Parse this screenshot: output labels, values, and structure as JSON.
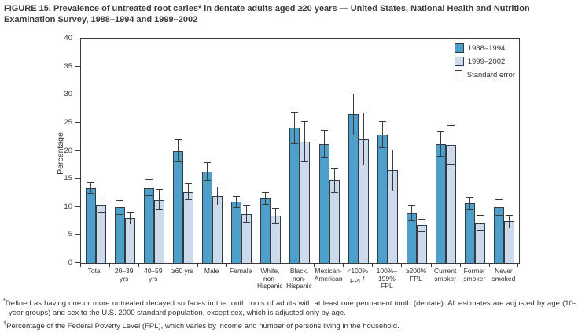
{
  "title": "FIGURE 15. Prevalence of untreated root caries* in dentate adults aged ≥20 years — United States, National Health and Nutrition Examination Survey, 1988–1994 and 1999–2002",
  "chart_data": {
    "type": "bar",
    "title": "FIGURE 15. Prevalence of untreated root caries in dentate adults aged ≥20 years — United States, National Health and Nutrition Examination Survey, 1988–1994 and 1999–2002",
    "xlabel": "",
    "ylabel": "Percentage",
    "ylim": [
      0,
      40
    ],
    "ytick_step": 5,
    "grid": false,
    "legend_position": "top-right-inside",
    "legend_error_label": "Standard error",
    "categories": [
      "Total",
      "20–39\nyrs",
      "40–59\nyrs",
      "≥60 yrs",
      "Male",
      "Female",
      "White,\nnon-\nHispanic",
      "Black,\nnon-\nHispanic",
      "Mexican-\nAmerican",
      "<100%\nFPL†",
      "100%–\n199%\nFPL",
      "≥200%\nFPL",
      "Current\nsmoker",
      "Former\nsmoker",
      "Never\nsmoked"
    ],
    "series": [
      {
        "name": "1988–1994",
        "color": "#4f9fcb",
        "values": [
          13.4,
          9.9,
          13.4,
          20.0,
          16.3,
          10.9,
          11.5,
          24.1,
          21.2,
          26.5,
          22.9,
          8.9,
          21.2,
          10.6,
          9.9
        ],
        "standard_errors": [
          1.1,
          1.3,
          1.5,
          2.0,
          1.7,
          1.1,
          1.1,
          2.9,
          2.5,
          3.7,
          2.4,
          1.4,
          2.3,
          1.2,
          1.5
        ]
      },
      {
        "name": "1999–2002",
        "color": "#ccdaec",
        "values": [
          10.3,
          8.0,
          11.3,
          12.7,
          11.9,
          8.7,
          8.4,
          21.6,
          14.7,
          22.1,
          16.5,
          6.7,
          21.0,
          7.1,
          7.4
        ],
        "standard_errors": [
          1.3,
          1.1,
          1.9,
          1.5,
          1.7,
          1.5,
          1.4,
          3.7,
          2.2,
          4.7,
          3.7,
          1.2,
          3.5,
          1.4,
          1.2
        ]
      }
    ]
  },
  "footnotes": [
    {
      "marker": "*",
      "text": "Defined as having one or more untreated decayed surfaces in the tooth roots of adults with at least one permanent tooth (dentate). All estimates are adjusted by age (10-year groups) and sex to the U.S. 2000 standard population, except sex, which is adjusted only by age."
    },
    {
      "marker": "†",
      "text": "Percentage of the Federal Poverty Level (FPL), which varies by income and number of persons living in the household."
    }
  ]
}
